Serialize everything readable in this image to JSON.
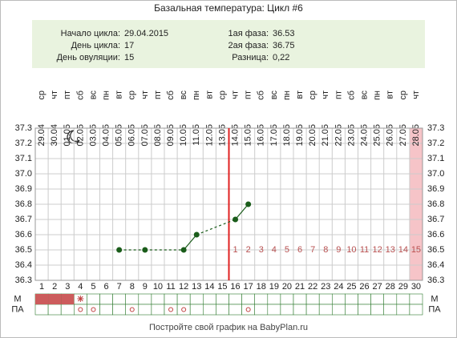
{
  "chart_data": {
    "type": "line",
    "title": "Базальная температура: Цикл #6",
    "info_left": [
      {
        "label": "Начало цикла:",
        "value": "29.04.2015"
      },
      {
        "label": "День цикла:",
        "value": "17"
      },
      {
        "label": "День овуляции:",
        "value": "15"
      }
    ],
    "info_right": [
      {
        "label": "1ая фаза:",
        "value": "36.53"
      },
      {
        "label": "2ая фаза:",
        "value": "36.75"
      },
      {
        "label": "Разница:",
        "value": "0,22"
      }
    ],
    "categories": [
      1,
      2,
      3,
      4,
      5,
      6,
      7,
      8,
      9,
      10,
      11,
      12,
      13,
      14,
      15,
      16,
      17,
      18,
      19,
      20,
      21,
      22,
      23,
      24,
      25,
      26,
      27,
      28,
      29,
      30
    ],
    "dates": [
      "29.04",
      "30.04",
      "01.05",
      "02.05",
      "03.05",
      "04.05",
      "05.05",
      "06.05",
      "07.05",
      "08.05",
      "09.05",
      "10.05",
      "11.05",
      "12.05",
      "13.05",
      "14.05",
      "15.05",
      "16.05",
      "17.05",
      "18.05",
      "19.05",
      "20.05",
      "21.05",
      "22.05",
      "23.05",
      "24.05",
      "25.05",
      "26.05",
      "27.05",
      "28.05"
    ],
    "weekdays": [
      "ср",
      "чт",
      "пт",
      "сб",
      "вс",
      "пн",
      "вт",
      "ср",
      "чт",
      "пт",
      "сб",
      "вс",
      "пн",
      "вт",
      "ср",
      "чт",
      "пт",
      "сб",
      "вс",
      "пн",
      "вт",
      "ср",
      "чт",
      "пт",
      "сб",
      "вс",
      "пн",
      "вт",
      "ср",
      "чт"
    ],
    "series": [
      {
        "color": "#1a5c1a",
        "values": [
          null,
          null,
          null,
          null,
          null,
          null,
          36.5,
          null,
          36.5,
          null,
          null,
          36.5,
          36.6,
          null,
          null,
          36.7,
          36.8,
          null,
          null,
          null,
          null,
          null,
          null,
          null,
          null,
          null,
          null,
          null,
          null,
          null
        ]
      }
    ],
    "ylim": [
      36.3,
      37.3
    ],
    "yticks": [
      36.3,
      36.4,
      36.5,
      36.6,
      36.7,
      36.8,
      36.9,
      {
        "value": 37,
        "label": "37.0"
      },
      37.1,
      37.2,
      37.3
    ],
    "ovulation_day": 15,
    "ovulation_color": "#e02020",
    "phase2_days": [
      1,
      2,
      3,
      4,
      5,
      6,
      7,
      8,
      9,
      10,
      11,
      12,
      13,
      14,
      15
    ],
    "highlight_day": 30,
    "row_m_label": "М",
    "row_pa_label": "ПА",
    "menstruation_days": [
      1,
      2,
      3
    ],
    "spotting_days": [
      4
    ],
    "pa_days": [
      4,
      5,
      8,
      11,
      12,
      17
    ],
    "footer": "Постройте свой график на BabyPlan.ru"
  }
}
